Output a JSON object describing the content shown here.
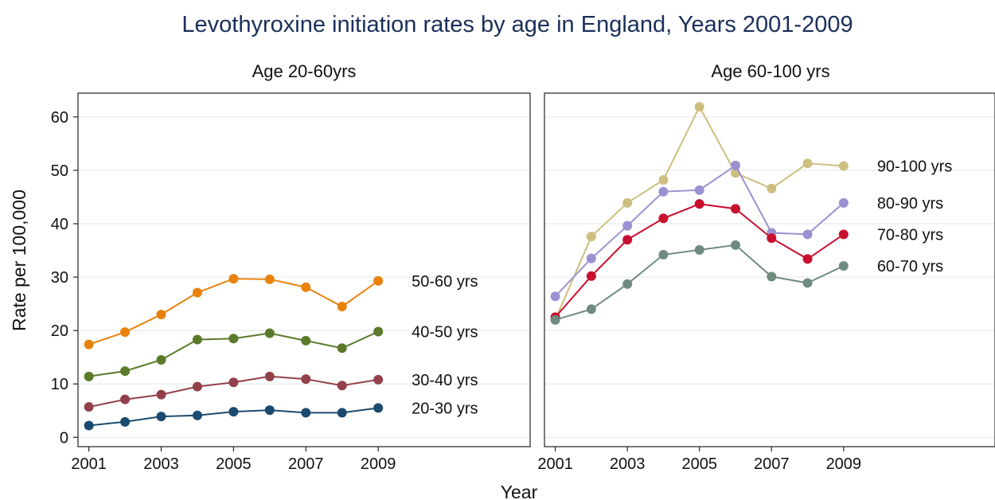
{
  "title": "Levothyroxine initiation rates by age in England, Years 2001-2009",
  "xlabel": "Year",
  "ylabel": "Rate per 100,000",
  "colors": {
    "title": "#1b2f5a",
    "grid": "#e3ecef",
    "axis": "#222222"
  },
  "chart_data": [
    {
      "type": "line",
      "panel_title": "Age 20-60yrs",
      "x": [
        2001,
        2002,
        2003,
        2004,
        2005,
        2006,
        2007,
        2008,
        2009
      ],
      "xticks": [
        "2001",
        "2003",
        "2005",
        "2007",
        "2009"
      ],
      "yticks": [
        "0",
        "10",
        "20",
        "30",
        "40",
        "50",
        "60"
      ],
      "xlim": [
        2000.7,
        2013.2
      ],
      "ylim": [
        -1,
        64
      ],
      "grid": true,
      "legend": "series labels at right end of lines",
      "series": [
        {
          "name": "50-60 yrs",
          "color": "#e8820c",
          "values": [
            17.4,
            19.7,
            23.0,
            27.1,
            29.7,
            29.6,
            28.1,
            24.5,
            29.3
          ]
        },
        {
          "name": "40-50 yrs",
          "color": "#5b7a2a",
          "values": [
            11.4,
            12.4,
            14.5,
            18.3,
            18.5,
            19.5,
            18.1,
            16.7,
            19.8
          ]
        },
        {
          "name": "30-40 yrs",
          "color": "#93404a",
          "values": [
            5.7,
            7.1,
            8.0,
            9.5,
            10.3,
            11.4,
            10.9,
            9.7,
            10.8
          ]
        },
        {
          "name": "20-30 yrs",
          "color": "#1c4a6e",
          "values": [
            2.2,
            2.9,
            3.9,
            4.1,
            4.8,
            5.1,
            4.6,
            4.6,
            5.5
          ]
        }
      ]
    },
    {
      "type": "line",
      "panel_title": "Age 60-100 yrs",
      "x": [
        2001,
        2002,
        2003,
        2004,
        2005,
        2006,
        2007,
        2008,
        2009
      ],
      "xticks": [
        "2001",
        "2003",
        "2005",
        "2007",
        "2009"
      ],
      "xlim": [
        2000.7,
        2013.2
      ],
      "ylim": [
        -1,
        64
      ],
      "grid": true,
      "legend": "series labels at right end of lines",
      "series": [
        {
          "name": "90-100 yrs",
          "color": "#cdbf80",
          "values": [
            22.0,
            37.6,
            43.9,
            48.2,
            61.9,
            49.5,
            46.6,
            51.3,
            50.8
          ]
        },
        {
          "name": "80-90 yrs",
          "color": "#9b91d1",
          "values": [
            26.4,
            33.5,
            39.6,
            46.0,
            46.3,
            50.9,
            38.3,
            38.0,
            43.9
          ]
        },
        {
          "name": "70-80 yrs",
          "color": "#c8102e",
          "values": [
            22.5,
            30.2,
            37.0,
            41.0,
            43.7,
            42.8,
            37.3,
            33.4,
            38.0
          ]
        },
        {
          "name": "60-70 yrs",
          "color": "#6f8b80",
          "values": [
            22.0,
            24.0,
            28.7,
            34.2,
            35.1,
            36.0,
            30.1,
            28.9,
            32.1
          ]
        }
      ]
    }
  ]
}
